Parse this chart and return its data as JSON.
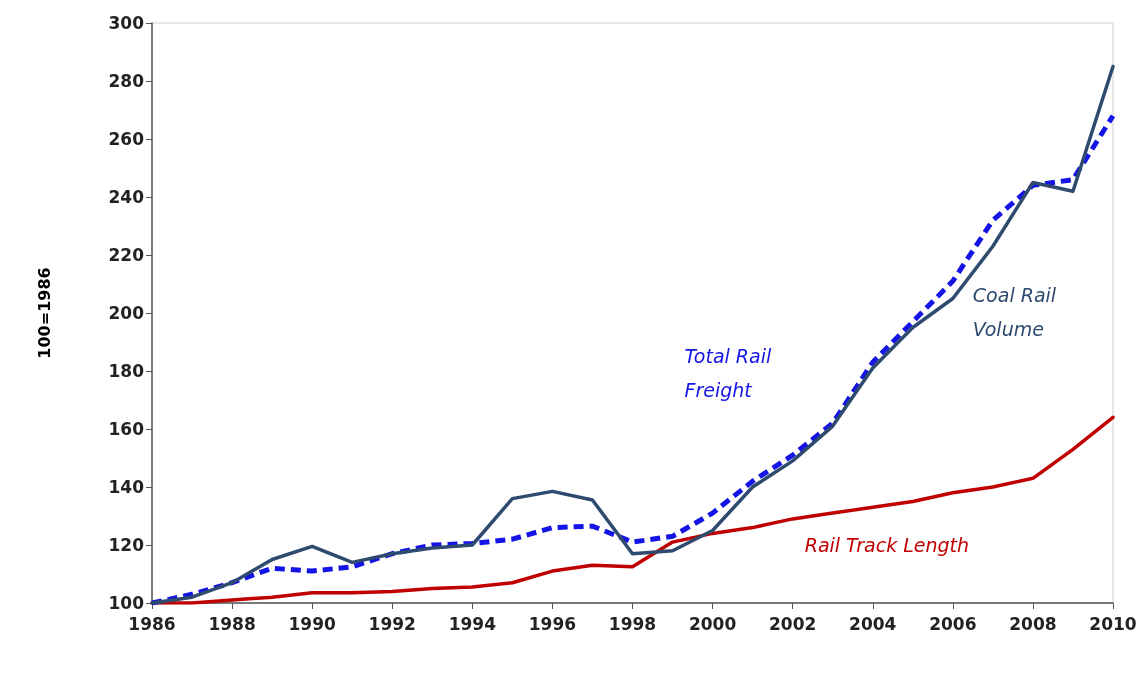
{
  "chart_data": {
    "type": "line",
    "ylabel": "100=1986",
    "x": [
      1986,
      1987,
      1988,
      1989,
      1990,
      1991,
      1992,
      1993,
      1994,
      1995,
      1996,
      1997,
      1998,
      1999,
      2000,
      2001,
      2002,
      2003,
      2004,
      2005,
      2006,
      2007,
      2008,
      2009,
      2010
    ],
    "series": [
      {
        "name": "Coal Rail Volume",
        "color": "#2e4a6e",
        "line_style": "solid",
        "values": [
          100,
          102,
          107,
          115,
          119.5,
          114,
          117,
          119,
          120,
          136,
          138.5,
          135.5,
          117,
          118,
          125,
          140,
          149,
          161,
          181,
          195,
          205,
          223,
          245,
          242,
          285
        ]
      },
      {
        "name": "Total Rail Freight",
        "color": "#1414e6",
        "line_style": "dashed",
        "values": [
          100,
          103,
          107,
          112,
          111,
          112.5,
          117,
          120,
          120.5,
          122,
          126,
          126.5,
          121,
          123,
          131,
          142,
          151,
          162,
          183,
          197,
          211,
          232,
          244,
          246,
          268
        ]
      },
      {
        "name": "Rail Track Length",
        "color": "#c00000",
        "line_style": "solid",
        "values": [
          100,
          100,
          101,
          102,
          103.5,
          103.5,
          104,
          105,
          105.5,
          107,
          111,
          113,
          112.5,
          121,
          124,
          126,
          129,
          131,
          133,
          135,
          138,
          140,
          143,
          153,
          164
        ]
      }
    ],
    "xlim": [
      1986,
      2010
    ],
    "xticks": [
      1986,
      1988,
      1990,
      1992,
      1994,
      1996,
      1998,
      2000,
      2002,
      2004,
      2006,
      2008,
      2010
    ],
    "ylim": [
      100,
      300
    ],
    "yticks": [
      100,
      120,
      140,
      160,
      180,
      200,
      220,
      240,
      260,
      280,
      300
    ],
    "grid": false,
    "legend": false,
    "marker": "none"
  }
}
